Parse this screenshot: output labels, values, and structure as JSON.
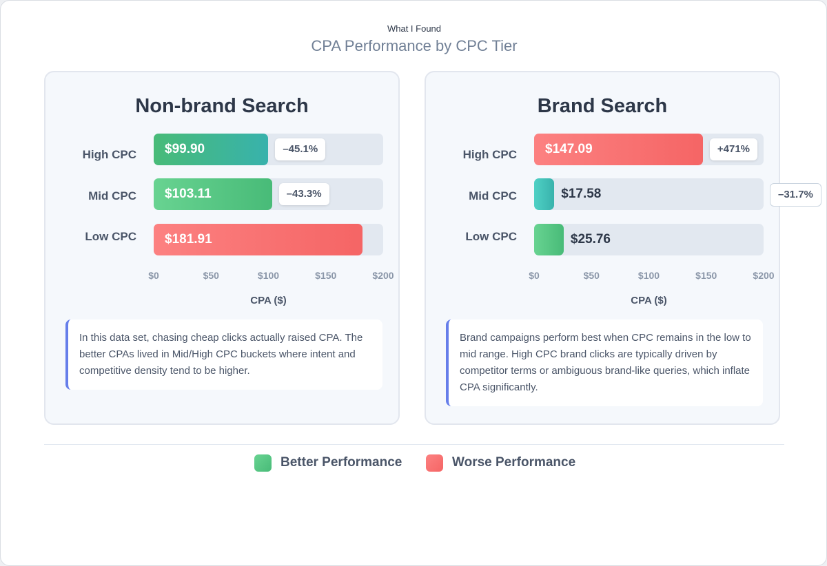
{
  "header": {
    "kicker": "What I Found",
    "title": "CPA Performance by CPC Tier"
  },
  "chart_data": [
    {
      "type": "bar",
      "orientation": "horizontal",
      "title": "Non-brand Search",
      "categories": [
        "High CPC",
        "Mid CPC",
        "Low CPC"
      ],
      "values": [
        99.9,
        103.11,
        181.91
      ],
      "value_labels": [
        "$99.90",
        "$103.11",
        "$181.91"
      ],
      "change_labels": [
        "–45.1%",
        "–43.3%",
        ""
      ],
      "performance": [
        "better",
        "better",
        "worse"
      ],
      "bar_colors": [
        [
          "#48bb78",
          "#38b2ac"
        ],
        [
          "#68d391",
          "#48bb78"
        ],
        [
          "#fc8181",
          "#f56565"
        ]
      ],
      "xlim": [
        0,
        200
      ],
      "xticks": [
        0,
        50,
        100,
        150,
        200
      ],
      "xtick_labels": [
        "$0",
        "$50",
        "$100",
        "$150",
        "$200"
      ],
      "xlabel": "CPA ($)",
      "note": "In this data set, chasing cheap clicks actually raised CPA. The better CPAs lived in Mid/High CPC buckets where intent and competitive density tend to be higher."
    },
    {
      "type": "bar",
      "orientation": "horizontal",
      "title": "Brand Search",
      "categories": [
        "High CPC",
        "Mid CPC",
        "Low CPC"
      ],
      "values": [
        147.09,
        17.58,
        25.76
      ],
      "value_labels": [
        "$147.09",
        "$17.58",
        "$25.76"
      ],
      "change_labels": [
        "+471%",
        "–31.7%",
        ""
      ],
      "performance": [
        "worse",
        "better",
        "better"
      ],
      "bar_colors": [
        [
          "#fc8181",
          "#f56565"
        ],
        [
          "#4fd1c5",
          "#38b2ac"
        ],
        [
          "#68d391",
          "#48bb78"
        ]
      ],
      "xlim": [
        0,
        200
      ],
      "xticks": [
        0,
        50,
        100,
        150,
        200
      ],
      "xtick_labels": [
        "$0",
        "$50",
        "$100",
        "$150",
        "$200"
      ],
      "xlabel": "CPA ($)",
      "note": "Brand campaigns perform best when CPC remains in the low to mid range. High CPC brand clicks are typically driven by competitor terms or ambiguous brand-like queries, which inflate CPA significantly."
    }
  ],
  "legend": {
    "better_label": "Better Performance",
    "worse_label": "Worse Performance",
    "better_color": "#48bb78",
    "worse_color": "#f56565"
  }
}
